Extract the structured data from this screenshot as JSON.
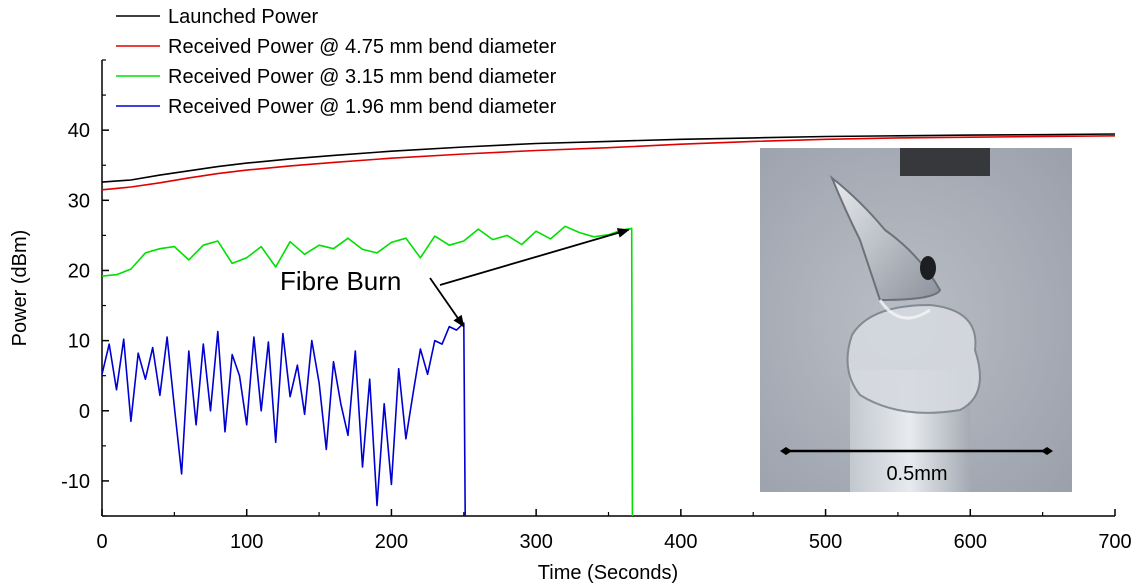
{
  "chart_data": {
    "type": "line",
    "xlabel": "Time (Seconds)",
    "ylabel": "Power (dBm)",
    "xlim": [
      0,
      700
    ],
    "ylim": [
      -15,
      50
    ],
    "x_ticks": [
      0,
      100,
      200,
      300,
      400,
      500,
      600,
      700
    ],
    "y_ticks": [
      -10,
      0,
      10,
      20,
      30,
      40
    ],
    "grid": false,
    "legend_position": "top-left",
    "series": [
      {
        "name": "Launched Power",
        "color": "#000000",
        "x": [
          0,
          20,
          40,
          60,
          80,
          100,
          130,
          160,
          200,
          250,
          300,
          350,
          400,
          450,
          500,
          550,
          600,
          650,
          700
        ],
        "y": [
          32.6,
          32.9,
          33.6,
          34.2,
          34.8,
          35.3,
          35.9,
          36.4,
          37.0,
          37.6,
          38.1,
          38.4,
          38.7,
          38.9,
          39.1,
          39.2,
          39.3,
          39.35,
          39.45
        ]
      },
      {
        "name": "Received Power @ 4.75 mm bend diameter",
        "color": "#e00000",
        "x": [
          0,
          20,
          40,
          60,
          80,
          100,
          130,
          160,
          200,
          250,
          300,
          350,
          400,
          450,
          500,
          550,
          600,
          650,
          700
        ],
        "y": [
          31.5,
          31.9,
          32.5,
          33.2,
          33.8,
          34.3,
          34.9,
          35.4,
          36.0,
          36.6,
          37.1,
          37.5,
          38.0,
          38.4,
          38.7,
          38.9,
          39.0,
          39.1,
          39.2
        ]
      },
      {
        "name": "Received Power @ 3.15 mm bend diameter",
        "color": "#00e000",
        "x": [
          0,
          10,
          20,
          30,
          40,
          50,
          60,
          70,
          80,
          90,
          100,
          110,
          120,
          130,
          140,
          150,
          160,
          170,
          180,
          190,
          200,
          210,
          220,
          230,
          240,
          250,
          260,
          270,
          280,
          290,
          300,
          310,
          320,
          330,
          340,
          350,
          360,
          366,
          366.5
        ],
        "y": [
          19.2,
          19.4,
          20.2,
          22.5,
          23.1,
          23.4,
          21.5,
          23.6,
          24.2,
          21.0,
          21.8,
          23.4,
          20.5,
          24.1,
          22.3,
          23.6,
          23.1,
          24.6,
          23.0,
          22.5,
          24.0,
          24.6,
          21.8,
          24.9,
          23.6,
          24.2,
          25.9,
          24.4,
          25.0,
          23.7,
          25.6,
          24.5,
          26.3,
          25.4,
          24.8,
          25.1,
          25.8,
          26.0,
          -15
        ]
      },
      {
        "name": "Received Power @ 1.96 mm bend diameter",
        "color": "#0000d0",
        "x": [
          0,
          5,
          10,
          15,
          20,
          25,
          30,
          35,
          40,
          45,
          50,
          55,
          60,
          65,
          70,
          75,
          80,
          85,
          90,
          95,
          100,
          105,
          110,
          115,
          120,
          125,
          130,
          135,
          140,
          145,
          150,
          155,
          160,
          165,
          170,
          175,
          180,
          185,
          190,
          195,
          200,
          205,
          210,
          215,
          220,
          225,
          230,
          235,
          240,
          245,
          250,
          251
        ],
        "y": [
          5.2,
          9.5,
          3.0,
          10.2,
          -1.5,
          8.2,
          4.5,
          9.0,
          2.2,
          10.5,
          0.5,
          -9.0,
          8.5,
          -2.0,
          9.5,
          0.0,
          11.3,
          -3.0,
          8.0,
          5.0,
          -2.0,
          10.5,
          0.0,
          9.8,
          -4.5,
          11.0,
          2.0,
          6.5,
          -0.5,
          10.0,
          4.0,
          -5.5,
          7.0,
          1.0,
          -3.5,
          8.5,
          -8.0,
          4.5,
          -13.5,
          1.0,
          -10.5,
          6.0,
          -4.0,
          2.5,
          8.8,
          5.2,
          10.0,
          9.5,
          12.0,
          11.5,
          12.5,
          -15
        ]
      }
    ],
    "annotations": {
      "fibre_burn_label": "Fibre Burn",
      "arrow_targets": [
        {
          "x": 250,
          "y": 12.0
        },
        {
          "x": 364,
          "y": 25.8
        }
      ]
    },
    "inset": {
      "description_label": "0.5mm"
    }
  }
}
